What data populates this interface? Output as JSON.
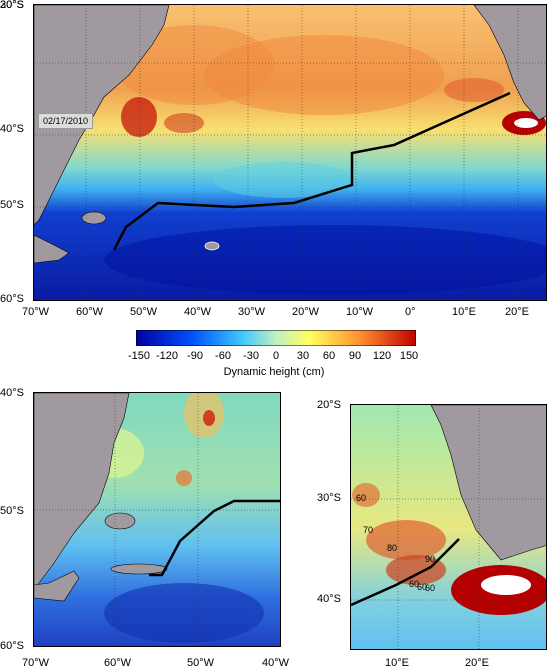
{
  "top_map": {
    "date": "02/17/2010",
    "lat_labels": [
      "20°S",
      "30°S",
      "40°S",
      "50°S",
      "60°S"
    ],
    "lon_labels": [
      "70°W",
      "60°W",
      "50°W",
      "40°W",
      "30°W",
      "20°W",
      "10°W",
      "0°",
      "10°E",
      "20°E"
    ]
  },
  "colorbar": {
    "ticks": [
      "-150",
      "-120",
      "-90",
      "-60",
      "-30",
      "0",
      "30",
      "60",
      "90",
      "120",
      "150"
    ],
    "title": "Dynamic height (cm)",
    "colors": [
      "#0000a0",
      "#0050ff",
      "#40c8ff",
      "#c0f0c0",
      "#ffff60",
      "#ff9030",
      "#c00000"
    ]
  },
  "bottom_left_map": {
    "lat_labels": [
      "40°S",
      "50°S",
      "60°S"
    ],
    "lon_labels": [
      "70°W",
      "60°W",
      "50°W",
      "40°W"
    ]
  },
  "bottom_right_map": {
    "lat_labels": [
      "20°S",
      "30°S",
      "40°S"
    ],
    "lon_labels": [
      "10°E",
      "20°E"
    ],
    "contour_labels": [
      "70",
      "80",
      "60",
      "60",
      "60",
      "60",
      "90"
    ]
  },
  "colors": {
    "land": "#a09aa0",
    "deep": "#0a1aa0",
    "ocean_mid": "#60d0e0",
    "warm": "#f4a040",
    "hot": "#b40000"
  }
}
